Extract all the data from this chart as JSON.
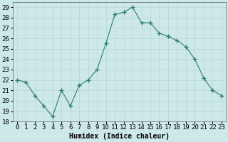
{
  "x": [
    0,
    1,
    2,
    3,
    4,
    5,
    6,
    7,
    8,
    9,
    10,
    11,
    12,
    13,
    14,
    15,
    16,
    17,
    18,
    19,
    20,
    21,
    22,
    23
  ],
  "y": [
    22,
    21.8,
    20.5,
    19.5,
    18.5,
    21,
    19.5,
    21.5,
    22,
    23,
    25.5,
    28.3,
    28.5,
    29,
    27.5,
    27.5,
    26.5,
    26.2,
    25.8,
    25.2,
    24,
    22.2,
    21,
    20.5
  ],
  "line_color": "#2e7d6e",
  "marker": "+",
  "marker_size": 4,
  "bg_color": "#cce8e8",
  "grid_color": "#b8d4d4",
  "xlabel": "Humidex (Indice chaleur)",
  "ylim": [
    18,
    29.5
  ],
  "xlim": [
    -0.5,
    23.5
  ],
  "yticks": [
    18,
    19,
    20,
    21,
    22,
    23,
    24,
    25,
    26,
    27,
    28,
    29
  ],
  "xtick_labels": [
    "0",
    "1",
    "2",
    "3",
    "4",
    "5",
    "6",
    "7",
    "8",
    "9",
    "10",
    "11",
    "12",
    "13",
    "14",
    "15",
    "16",
    "17",
    "18",
    "19",
    "20",
    "21",
    "22",
    "23"
  ],
  "label_fontsize": 7,
  "tick_fontsize": 6.5
}
